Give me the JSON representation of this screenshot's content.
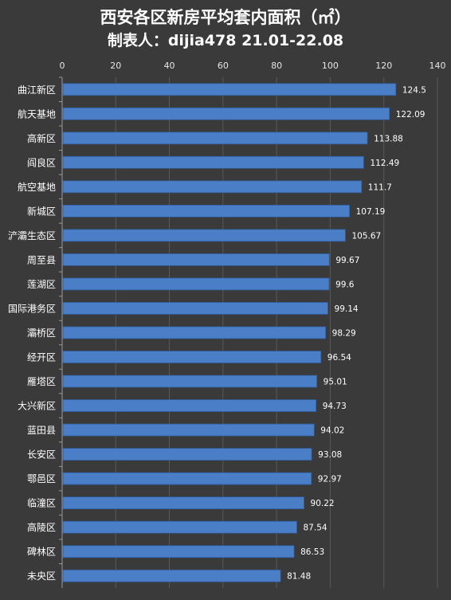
{
  "chart_data": {
    "type": "bar",
    "orientation": "horizontal",
    "title": "西安各区新房平均套内面积（㎡）",
    "subtitle": "制表人：dijia478 21.01-22.08",
    "categories": [
      "曲江新区",
      "航天基地",
      "高新区",
      "阎良区",
      "航空基地",
      "新城区",
      "浐灞生态区",
      "周至县",
      "莲湖区",
      "国际港务区",
      "灞桥区",
      "经开区",
      "雁塔区",
      "大兴新区",
      "蓝田县",
      "长安区",
      "鄠邑区",
      "临潼区",
      "高陵区",
      "碑林区",
      "未央区"
    ],
    "values": [
      124.5,
      122.09,
      113.88,
      112.49,
      111.7,
      107.19,
      105.67,
      99.67,
      99.6,
      99.14,
      98.29,
      96.54,
      95.01,
      94.73,
      94.02,
      93.08,
      92.97,
      90.22,
      87.54,
      86.53,
      81.48
    ],
    "value_labels": [
      "124.5",
      "122.09",
      "113.88",
      "112.49",
      "111.7",
      "107.19",
      "105.67",
      "99.67",
      "99.6",
      "99.14",
      "98.29",
      "96.54",
      "95.01",
      "94.73",
      "94.02",
      "93.08",
      "92.97",
      "90.22",
      "87.54",
      "86.53",
      "81.48"
    ],
    "xlim": [
      0,
      140
    ],
    "xticks": [
      0,
      20,
      40,
      60,
      80,
      100,
      120,
      140
    ],
    "x_axis_position": "top",
    "grid": true,
    "bar_color": "#4a7ec6"
  }
}
